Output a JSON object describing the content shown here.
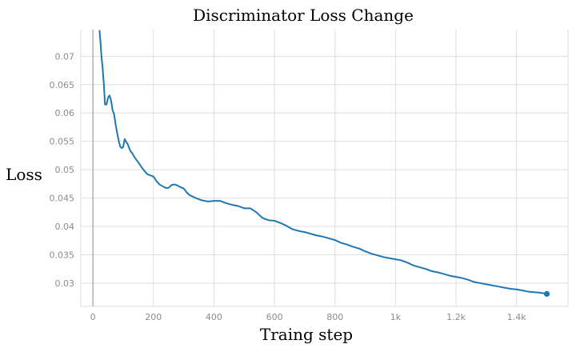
{
  "chart_data": {
    "type": "line",
    "title": "Discriminator Loss Change",
    "xlabel": "Traing step",
    "ylabel": "Loss",
    "xlim": [
      -40,
      1570
    ],
    "ylim": [
      0.0259,
      0.0747
    ],
    "grid": true,
    "x_ticks": [
      0,
      200,
      400,
      600,
      800,
      1000,
      1200,
      1400
    ],
    "x_tick_labels": [
      "0",
      "200",
      "400",
      "600",
      "800",
      "1k",
      "1.2k",
      "1.4k"
    ],
    "y_ticks": [
      0.03,
      0.035,
      0.04,
      0.045,
      0.05,
      0.055,
      0.06,
      0.065,
      0.07
    ],
    "y_tick_labels": [
      "0.03",
      "0.035",
      "0.04",
      "0.045",
      "0.05",
      "0.055",
      "0.06",
      "0.065",
      "0.07"
    ],
    "colors": {
      "line": "#1f77b4",
      "grid": "#dedede",
      "vline": "#9e9e9e"
    },
    "series": [
      {
        "name": "",
        "x": [
          22,
          25,
          28,
          32,
          36,
          40,
          45,
          50,
          55,
          60,
          65,
          70,
          75,
          80,
          85,
          90,
          95,
          100,
          105,
          110,
          115,
          120,
          125,
          130,
          140,
          150,
          160,
          170,
          180,
          190,
          200,
          210,
          220,
          230,
          240,
          250,
          260,
          270,
          280,
          290,
          300,
          310,
          320,
          340,
          360,
          380,
          400,
          420,
          440,
          460,
          480,
          500,
          520,
          540,
          560,
          580,
          600,
          620,
          640,
          660,
          680,
          700,
          720,
          740,
          760,
          780,
          800,
          820,
          840,
          860,
          880,
          900,
          920,
          940,
          960,
          980,
          1000,
          1020,
          1040,
          1060,
          1080,
          1100,
          1120,
          1140,
          1160,
          1180,
          1200,
          1220,
          1240,
          1260,
          1280,
          1300,
          1320,
          1340,
          1360,
          1380,
          1400,
          1420,
          1440,
          1460,
          1480,
          1500
        ],
        "y": [
          0.0745,
          0.0725,
          0.0702,
          0.068,
          0.0652,
          0.0615,
          0.0615,
          0.0627,
          0.0631,
          0.0622,
          0.0605,
          0.0598,
          0.058,
          0.0565,
          0.0552,
          0.0541,
          0.0538,
          0.054,
          0.0554,
          0.0549,
          0.0545,
          0.0538,
          0.0532,
          0.0529,
          0.052,
          0.0513,
          0.0505,
          0.0498,
          0.0492,
          0.049,
          0.0488,
          0.048,
          0.0474,
          0.0471,
          0.0468,
          0.0468,
          0.0473,
          0.0474,
          0.0472,
          0.0469,
          0.0467,
          0.046,
          0.0455,
          0.045,
          0.0446,
          0.0444,
          0.0445,
          0.0445,
          0.0441,
          0.0438,
          0.0436,
          0.0432,
          0.0432,
          0.0425,
          0.0415,
          0.0411,
          0.041,
          0.0406,
          0.0401,
          0.0395,
          0.0392,
          0.039,
          0.0387,
          0.0384,
          0.0382,
          0.0379,
          0.0376,
          0.0371,
          0.0368,
          0.0364,
          0.0361,
          0.0356,
          0.0352,
          0.0349,
          0.0346,
          0.0344,
          0.0342,
          0.034,
          0.0336,
          0.0331,
          0.0328,
          0.0325,
          0.0321,
          0.0319,
          0.0316,
          0.0313,
          0.0311,
          0.0309,
          0.0306,
          0.0302,
          0.03,
          0.0298,
          0.0296,
          0.0294,
          0.0292,
          0.029,
          0.0289,
          0.0287,
          0.0285,
          0.0284,
          0.0283,
          0.0281
        ]
      }
    ]
  }
}
